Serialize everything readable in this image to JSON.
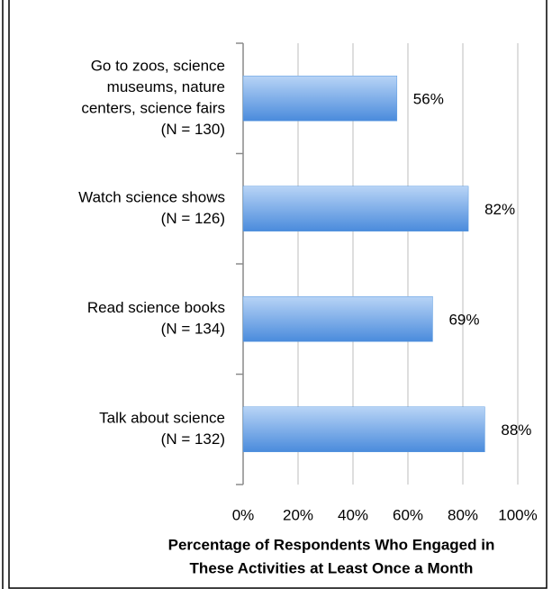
{
  "chart_data": {
    "type": "barh",
    "categories": [
      [
        "Go to zoos, science",
        "museums, nature",
        "centers, science fairs",
        "(N = 130)"
      ],
      [
        "Watch science shows",
        "(N = 126)"
      ],
      [
        "Read science books",
        "(N = 134)"
      ],
      [
        "Talk about science",
        "(N = 132)"
      ]
    ],
    "values": [
      56,
      82,
      69,
      88
    ],
    "value_labels": [
      "56%",
      "82%",
      "69%",
      "88%"
    ],
    "color": "#5b9be0",
    "xlim": [
      0,
      100
    ],
    "xticks": [
      {
        "value": 0,
        "label": "0%"
      },
      {
        "value": 20,
        "label": "20%"
      },
      {
        "value": 40,
        "label": "40%"
      },
      {
        "value": 60,
        "label": "60%"
      },
      {
        "value": 80,
        "label": "80%"
      },
      {
        "value": 100,
        "label": "100%"
      }
    ],
    "x_label": [
      "Percentage of Respondents Who Engaged in",
      "These Activities at Least Once a Month"
    ],
    "grid": true
  }
}
